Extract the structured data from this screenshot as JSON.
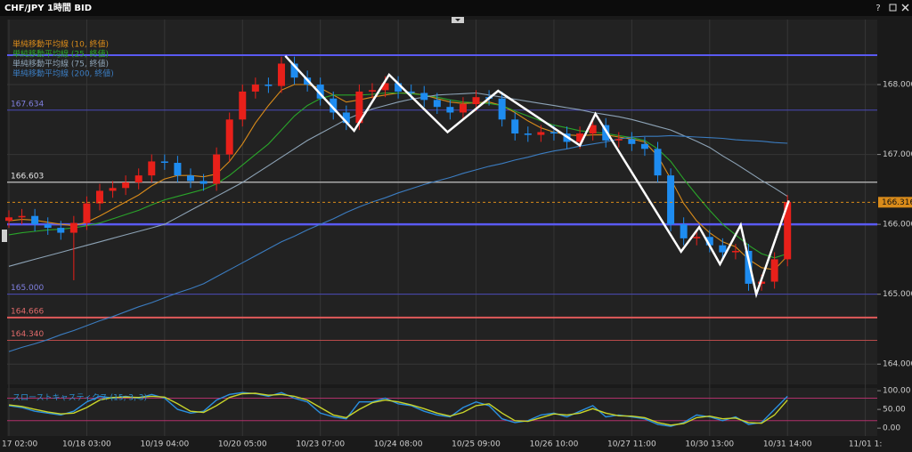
{
  "toolbar": {
    "help": "?"
  },
  "chart_data": [
    {
      "type": "candlestick",
      "title": "CHF/JPY 1時間 BID",
      "categories": [
        "17 02:00",
        null,
        null,
        null,
        null,
        null,
        "10/18 03:00",
        null,
        null,
        null,
        null,
        null,
        "10/19 04:00",
        null,
        null,
        null,
        null,
        null,
        "10/20 05:00",
        null,
        null,
        null,
        null,
        null,
        "10/23 07:00",
        null,
        null,
        null,
        null,
        null,
        "10/24 08:00",
        null,
        null,
        null,
        null,
        null,
        "10/25 09:00",
        null,
        null,
        null,
        null,
        null,
        "10/26 10:00",
        null,
        null,
        null,
        null,
        null,
        "10/27 11:00",
        null,
        null,
        null,
        null,
        null,
        "10/30 13:00",
        null,
        null,
        null,
        null,
        null,
        "10/31 14:00",
        null,
        null,
        null,
        null,
        null,
        "11/01 1:"
      ],
      "open": [
        166.05,
        166.1,
        166.12,
        166.0,
        165.95,
        165.88,
        166.02,
        166.3,
        166.48,
        166.52,
        166.6,
        166.7,
        166.9,
        166.88,
        166.7,
        166.62,
        166.58,
        167.0,
        167.5,
        167.9,
        168.0,
        167.98,
        168.3,
        168.1,
        168.0,
        167.8,
        167.6,
        167.45,
        167.9,
        167.92,
        168.02,
        167.9,
        167.88,
        167.78,
        167.68,
        167.6,
        167.72,
        167.82,
        167.8,
        167.5,
        167.3,
        167.28,
        167.32,
        167.3,
        167.18,
        167.3,
        167.42,
        167.2,
        167.22,
        167.15,
        167.08,
        166.7,
        166.0,
        165.8,
        165.82,
        165.7,
        165.6,
        165.62,
        165.15,
        165.18,
        165.5,
        null,
        null,
        null,
        null,
        null,
        null
      ],
      "high": [
        166.2,
        166.22,
        166.22,
        166.1,
        166.05,
        166.12,
        166.4,
        166.58,
        166.62,
        166.7,
        166.8,
        167.0,
        167.0,
        166.98,
        166.8,
        166.72,
        167.1,
        167.6,
        168.0,
        168.1,
        168.1,
        168.4,
        168.4,
        168.2,
        168.1,
        167.9,
        167.7,
        168.0,
        168.02,
        168.12,
        168.12,
        168.0,
        167.98,
        167.88,
        167.78,
        167.82,
        167.92,
        167.92,
        167.9,
        167.6,
        167.4,
        167.42,
        167.42,
        167.4,
        167.4,
        167.52,
        167.52,
        167.32,
        167.32,
        167.25,
        167.18,
        166.8,
        166.1,
        165.92,
        165.92,
        165.8,
        165.72,
        165.72,
        165.28,
        165.6,
        166.42,
        null,
        null,
        null,
        null,
        null,
        null
      ],
      "low": [
        165.95,
        166.0,
        165.9,
        165.85,
        165.78,
        165.2,
        165.92,
        166.2,
        166.38,
        166.42,
        166.5,
        166.6,
        166.78,
        166.6,
        166.52,
        166.48,
        166.48,
        166.9,
        167.4,
        167.8,
        167.88,
        167.88,
        168.0,
        167.9,
        167.7,
        167.5,
        167.35,
        167.35,
        167.8,
        167.82,
        167.8,
        167.78,
        167.68,
        167.58,
        167.5,
        167.5,
        167.62,
        167.7,
        167.4,
        167.2,
        167.18,
        167.18,
        167.2,
        167.08,
        167.08,
        167.2,
        167.1,
        167.1,
        167.05,
        166.98,
        166.6,
        165.9,
        165.7,
        165.7,
        165.6,
        165.5,
        165.5,
        165.05,
        165.05,
        165.08,
        165.4,
        null,
        null,
        null,
        null,
        null,
        null
      ],
      "close": [
        166.1,
        166.12,
        166.0,
        165.95,
        165.88,
        166.02,
        166.3,
        166.48,
        166.52,
        166.6,
        166.7,
        166.9,
        166.88,
        166.7,
        166.62,
        166.58,
        167.0,
        167.5,
        167.9,
        168.0,
        167.98,
        168.3,
        168.1,
        168.0,
        167.8,
        167.6,
        167.45,
        167.9,
        167.92,
        168.02,
        167.9,
        167.88,
        167.78,
        167.68,
        167.6,
        167.72,
        167.82,
        167.8,
        167.5,
        167.3,
        167.28,
        167.32,
        167.3,
        167.18,
        167.3,
        167.42,
        167.2,
        167.22,
        167.15,
        167.08,
        166.7,
        166.0,
        165.8,
        165.82,
        165.7,
        165.6,
        165.62,
        165.15,
        165.18,
        165.5,
        166.32,
        null,
        null,
        null,
        null,
        null,
        null
      ],
      "up_color": "#e8201a",
      "down_color": "#1e8cf0",
      "series": [
        {
          "name": "単純移動平均線 (10, 終値)",
          "color": "#d98b1a",
          "values": [
            166.05,
            166.07,
            166.06,
            166.03,
            166.0,
            165.98,
            166.03,
            166.12,
            166.22,
            166.32,
            166.42,
            166.55,
            166.65,
            166.7,
            166.7,
            166.68,
            166.72,
            166.9,
            167.15,
            167.45,
            167.7,
            167.92,
            168.0,
            168.0,
            167.95,
            167.85,
            167.75,
            167.78,
            167.82,
            167.85,
            167.88,
            167.88,
            167.85,
            167.8,
            167.75,
            167.73,
            167.74,
            167.75,
            167.7,
            167.6,
            167.48,
            167.38,
            167.32,
            167.28,
            167.27,
            167.28,
            167.28,
            167.25,
            167.22,
            167.18,
            166.98,
            166.65,
            166.3,
            166.05,
            165.88,
            165.75,
            165.68,
            165.5,
            165.38,
            165.35,
            165.55,
            null,
            null,
            null,
            null,
            null,
            null
          ]
        },
        {
          "name": "単純移動平均線 (25, 終値)",
          "color": "#2aa52a",
          "values": [
            165.85,
            165.88,
            165.9,
            165.92,
            165.93,
            165.95,
            165.98,
            166.02,
            166.08,
            166.14,
            166.2,
            166.28,
            166.35,
            166.4,
            166.45,
            166.5,
            166.58,
            166.7,
            166.85,
            167.0,
            167.15,
            167.35,
            167.55,
            167.7,
            167.8,
            167.85,
            167.85,
            167.85,
            167.86,
            167.88,
            167.88,
            167.87,
            167.85,
            167.82,
            167.78,
            167.75,
            167.74,
            167.73,
            167.7,
            167.62,
            167.55,
            167.48,
            167.42,
            167.38,
            167.34,
            167.32,
            167.3,
            167.27,
            167.24,
            167.2,
            167.08,
            166.9,
            166.65,
            166.42,
            166.2,
            166.0,
            165.85,
            165.7,
            165.58,
            165.52,
            165.58,
            null,
            null,
            null,
            null,
            null,
            null
          ]
        },
        {
          "name": "単純移動平均線 (75, 終値)",
          "color": "#8da3b6",
          "values": [
            165.4,
            165.45,
            165.5,
            165.55,
            165.6,
            165.65,
            165.7,
            165.75,
            165.8,
            165.85,
            165.9,
            165.95,
            166.0,
            166.1,
            166.2,
            166.3,
            166.4,
            166.5,
            166.6,
            166.72,
            166.84,
            166.96,
            167.08,
            167.2,
            167.3,
            167.4,
            167.5,
            167.58,
            167.65,
            167.7,
            167.75,
            167.79,
            167.82,
            167.85,
            167.86,
            167.87,
            167.88,
            167.85,
            167.82,
            167.79,
            167.76,
            167.73,
            167.7,
            167.67,
            167.64,
            167.6,
            167.57,
            167.54,
            167.5,
            167.45,
            167.4,
            167.35,
            167.27,
            167.19,
            167.1,
            166.98,
            166.87,
            166.75,
            166.63,
            166.52,
            166.4,
            null,
            null,
            null,
            null,
            null,
            null
          ]
        },
        {
          "name": "単純移動平均線 (200, 終値)",
          "color": "#3b7cc0",
          "values": [
            164.18,
            164.24,
            164.29,
            164.35,
            164.42,
            164.48,
            164.55,
            164.62,
            164.68,
            164.75,
            164.82,
            164.88,
            164.95,
            165.02,
            165.08,
            165.15,
            165.25,
            165.35,
            165.45,
            165.55,
            165.65,
            165.75,
            165.83,
            165.92,
            166.0,
            166.08,
            166.17,
            166.25,
            166.32,
            166.38,
            166.45,
            166.51,
            166.57,
            166.62,
            166.67,
            166.73,
            166.78,
            166.83,
            166.87,
            166.92,
            166.96,
            167.01,
            167.05,
            167.08,
            167.12,
            167.15,
            167.18,
            167.22,
            167.25,
            167.26,
            167.26,
            167.27,
            167.26,
            167.25,
            167.24,
            167.23,
            167.21,
            167.2,
            167.19,
            167.17,
            167.16,
            null,
            null,
            null,
            null,
            null,
            null
          ]
        }
      ],
      "ylim": [
        163.71,
        168.93
      ],
      "yticks": [
        {
          "value": 164,
          "label": "164.000"
        },
        {
          "value": 165,
          "label": "165.000"
        },
        {
          "value": 166,
          "label": "166.000"
        },
        {
          "value": 167,
          "label": "167.000"
        },
        {
          "value": 168,
          "label": "168.000"
        }
      ],
      "grid": true,
      "levels": [
        {
          "value": 168.42,
          "color": "#5a5af2",
          "width": 2
        },
        {
          "value": 167.634,
          "color": "#4a4ab8",
          "width": 1,
          "show_label": true
        },
        {
          "value": 166.603,
          "color": "#a8a8a8",
          "width": 1.5,
          "show_label": true
        },
        {
          "value": 166,
          "color": "#5a5af2",
          "width": 2.5
        },
        {
          "value": 165,
          "label": "165.000",
          "color": "#4a4ab8",
          "width": 1,
          "show_label": true
        },
        {
          "value": 164.666,
          "color": "#e05a5a",
          "width": 2,
          "show_label": true
        },
        {
          "value": 164.34,
          "label": "164.340",
          "color": "#b84a4a",
          "width": 1,
          "show_label": true
        }
      ],
      "current_price": 166.316,
      "current_color": "#d98b1a",
      "drawing": {
        "color": "#ffffff",
        "x": [
          21.3,
          26.6,
          29.3,
          33.8,
          37.7,
          44.0,
          45.2,
          51.8,
          53.2,
          54.8,
          56.4,
          57.6,
          60.1
        ],
        "values": [
          168.41,
          167.34,
          168.14,
          167.32,
          167.91,
          167.13,
          167.58,
          165.61,
          165.96,
          165.43,
          165.99,
          165.0,
          166.34
        ]
      }
    },
    {
      "type": "line",
      "title": "スローストキャスティクス (15, 3, 3)",
      "title_color": "#2a8fd0",
      "series": [
        {
          "color": "#2a8fe0",
          "values": [
            60,
            55,
            45,
            40,
            35,
            45,
            70,
            85,
            80,
            85,
            80,
            90,
            80,
            50,
            40,
            45,
            75,
            90,
            95,
            92,
            85,
            95,
            80,
            70,
            40,
            30,
            25,
            70,
            70,
            80,
            65,
            60,
            45,
            35,
            30,
            55,
            70,
            60,
            25,
            15,
            20,
            35,
            40,
            30,
            45,
            60,
            30,
            35,
            30,
            25,
            10,
            5,
            15,
            35,
            30,
            20,
            30,
            10,
            15,
            50,
            85,
            null,
            null,
            null,
            null,
            null,
            null
          ]
        },
        {
          "color": "#c8d42a",
          "values": [
            62,
            58,
            50,
            43,
            38,
            40,
            55,
            75,
            82,
            83,
            82,
            85,
            83,
            65,
            45,
            42,
            60,
            82,
            92,
            93,
            88,
            90,
            85,
            75,
            55,
            35,
            28,
            50,
            68,
            75,
            70,
            62,
            52,
            40,
            32,
            42,
            60,
            65,
            40,
            20,
            18,
            28,
            38,
            35,
            40,
            52,
            40,
            33,
            32,
            28,
            15,
            8,
            12,
            28,
            32,
            25,
            27,
            15,
            13,
            35,
            75,
            null,
            null,
            null,
            null,
            null,
            null
          ]
        }
      ],
      "ylim": [
        -21,
        105
      ],
      "yticks": [
        {
          "value": 0,
          "label": "0.00"
        },
        {
          "value": 50,
          "label": "50.00"
        },
        {
          "value": 100,
          "label": "100.00"
        }
      ],
      "levels": [
        {
          "value": 80,
          "color": "#b0306a",
          "width": 1
        },
        {
          "value": 20,
          "color": "#b0306a",
          "width": 1
        }
      ]
    }
  ]
}
